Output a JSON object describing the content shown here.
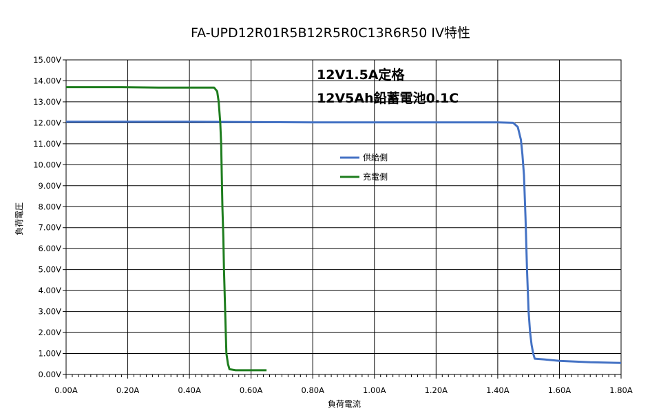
{
  "chart_data": {
    "type": "line",
    "title": "FA-UPD12R01R5B12R5R0C13R6R50 IV特性",
    "xlabel": "負荷電流",
    "ylabel": "負荷電圧",
    "xlim": [
      0,
      1.8
    ],
    "ylim": [
      0,
      15
    ],
    "x_ticks": [
      "0.00A",
      "0.20A",
      "0.40A",
      "0.60A",
      "0.80A",
      "1.00A",
      "1.20A",
      "1.40A",
      "1.60A",
      "1.80A"
    ],
    "y_ticks": [
      "0.00V",
      "1.00V",
      "2.00V",
      "3.00V",
      "4.00V",
      "5.00V",
      "6.00V",
      "7.00V",
      "8.00V",
      "9.00V",
      "10.00V",
      "11.00V",
      "12.00V",
      "13.00V",
      "14.00V",
      "15.00V"
    ],
    "grid": true,
    "legend_position": "center",
    "annotations": [
      "12V1.5A定格",
      "12V5Ah鉛蓄電池0.1C"
    ],
    "series": [
      {
        "name": "供給側",
        "color": "#4472c4",
        "x": [
          0,
          0.4,
          0.8,
          1.2,
          1.4,
          1.45,
          1.465,
          1.475,
          1.48,
          1.485,
          1.49,
          1.495,
          1.5,
          1.505,
          1.51,
          1.515,
          1.52,
          1.55,
          1.6,
          1.7,
          1.8
        ],
        "y": [
          12.05,
          12.05,
          12.02,
          12.02,
          12.02,
          12.0,
          11.8,
          11.2,
          10.5,
          9.5,
          7.5,
          5.0,
          3.0,
          2.0,
          1.4,
          1.0,
          0.75,
          0.72,
          0.65,
          0.58,
          0.55
        ]
      },
      {
        "name": "充電側",
        "color": "#1e7d1e",
        "x": [
          0,
          0.18,
          0.3,
          0.45,
          0.48,
          0.49,
          0.495,
          0.5,
          0.503,
          0.505,
          0.507,
          0.51,
          0.512,
          0.515,
          0.518,
          0.52,
          0.525,
          0.53,
          0.55,
          0.6,
          0.65
        ],
        "y": [
          13.7,
          13.7,
          13.68,
          13.68,
          13.68,
          13.5,
          13.0,
          12.0,
          11.0,
          9.5,
          8.0,
          6.5,
          5.0,
          3.5,
          2.0,
          1.0,
          0.5,
          0.25,
          0.2,
          0.2,
          0.2
        ]
      }
    ]
  }
}
